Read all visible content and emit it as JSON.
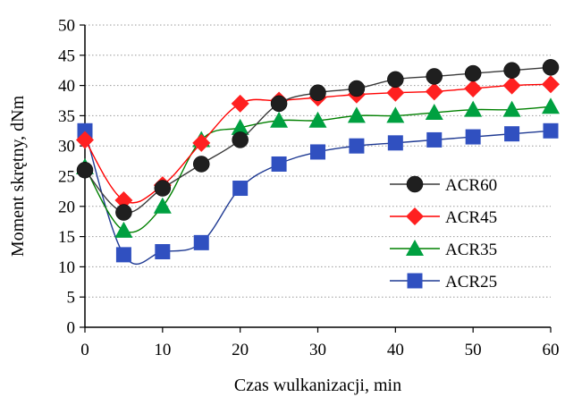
{
  "chart_data": {
    "type": "line",
    "title": "",
    "xlabel": "Czas wulkanizacji, min",
    "ylabel": "Moment skrętny, dNm",
    "xlim": [
      0,
      60
    ],
    "ylim": [
      0,
      50
    ],
    "x_ticks": [
      "0",
      "10",
      "20",
      "30",
      "40",
      "50",
      "60"
    ],
    "y_ticks": [
      "0",
      "5",
      "10",
      "15",
      "20",
      "25",
      "30",
      "35",
      "40",
      "45",
      "50"
    ],
    "grid": "horizontal dotted",
    "legend_position": "right",
    "series": [
      {
        "name": "ACR60",
        "color": "#3a3a3a",
        "marker_color": "#1f1f1f",
        "marker": "circle",
        "x": [
          0,
          5,
          10,
          15,
          20,
          25,
          30,
          35,
          40,
          45,
          50,
          55,
          60
        ],
        "y": [
          26,
          19,
          23,
          27,
          31,
          37,
          38.8,
          39.5,
          41,
          41.5,
          42,
          42.5,
          43
        ]
      },
      {
        "name": "ACR45",
        "color": "#ff0000",
        "marker_color": "#ff2020",
        "marker": "diamond",
        "x": [
          0,
          5,
          10,
          15,
          20,
          25,
          30,
          35,
          40,
          45,
          50,
          55,
          60
        ],
        "y": [
          31,
          21,
          23.5,
          30.5,
          37,
          37.5,
          38,
          38.5,
          38.8,
          39,
          39.5,
          40,
          40.2
        ]
      },
      {
        "name": "ACR35",
        "color": "#008000",
        "marker_color": "#00a040",
        "marker": "triangle",
        "x": [
          0,
          5,
          10,
          15,
          20,
          25,
          30,
          35,
          40,
          45,
          50,
          55,
          60
        ],
        "y": [
          26.5,
          16,
          20,
          31,
          33,
          34.2,
          34.2,
          35,
          35,
          35.5,
          36,
          36,
          36.5
        ]
      },
      {
        "name": "ACR25",
        "color": "#1f3a93",
        "marker_color": "#3050c0",
        "marker": "square",
        "x": [
          0,
          5,
          10,
          15,
          20,
          25,
          30,
          35,
          40,
          45,
          50,
          55,
          60
        ],
        "y": [
          32.5,
          12,
          12.5,
          14,
          23,
          27,
          29,
          30,
          30.5,
          31,
          31.5,
          32,
          32.5
        ]
      }
    ]
  }
}
